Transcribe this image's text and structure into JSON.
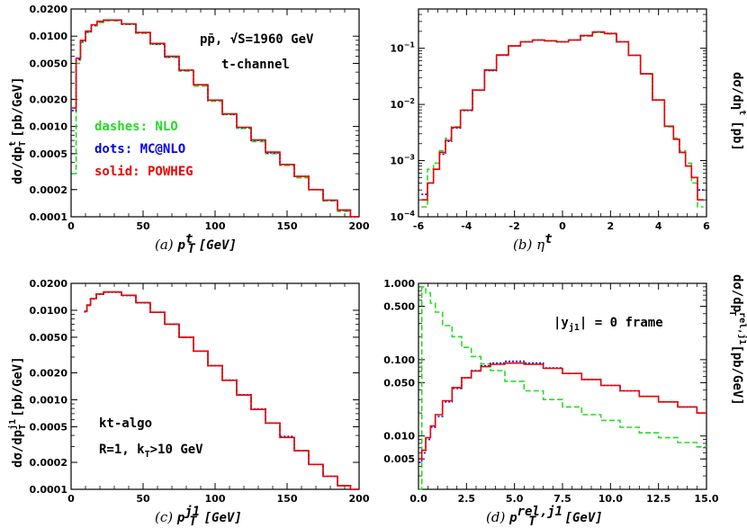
{
  "colors": {
    "NLO": "#22dd22",
    "MC@NLO": "#0000ee",
    "POWHEG": "#ee0000"
  },
  "legend": {
    "nlo": "dashes: NLO",
    "mcnlo": "dots: MC@NLO",
    "powheg": "solid: POWHEG"
  },
  "panels": {
    "a": {
      "caption_letter": "(a)",
      "caption_var": "p",
      "caption_sup": "t",
      "caption_sub": "T",
      "caption_unit": "[GeV]",
      "ylabel_main": "dσ/dp",
      "ylabel_sup": "t",
      "ylabel_sub": "T",
      "ylabel_unit": "[pb/GeV]",
      "note1": "pp̄, √S=1960 GeV",
      "note2": "t-channel"
    },
    "b": {
      "caption_letter": "(b)",
      "caption_var": "η",
      "caption_sup": "t",
      "ylabel_main": "dσ/dη",
      "ylabel_sup": "t",
      "ylabel_unit": "[pb]"
    },
    "c": {
      "caption_letter": "(c)",
      "caption_var": "p",
      "caption_sup": "j1",
      "caption_sub": "T",
      "caption_unit": "[GeV]",
      "ylabel_main": "dσ/dp",
      "ylabel_sup": "j1",
      "ylabel_sub": "T",
      "ylabel_unit": "[pb/GeV]",
      "note1": "kt-algo",
      "note2": "R=1, k",
      "note2_sub": "T",
      "note2_tail": ">10 GeV"
    },
    "d": {
      "caption_letter": "(d)",
      "caption_var": "p",
      "caption_sup": "rel,j1",
      "caption_sub": "T",
      "caption_unit": "[GeV]",
      "ylabel_main": "dσ/dp",
      "ylabel_sup": "rel,j1",
      "ylabel_sub": "T",
      "ylabel_unit": "[pb/GeV]",
      "note1": "|y",
      "note1_sub": "j1",
      "note1_tail": "| = 0 frame"
    }
  },
  "chart_data": [
    {
      "type": "line",
      "panel": "a",
      "yscale": "log",
      "xlim": [
        0,
        200
      ],
      "ylim": [
        0.0001,
        0.02
      ],
      "xticks": [
        0,
        50,
        100,
        150,
        200
      ],
      "yticks": [
        0.0001,
        0.0002,
        0.0005,
        0.001,
        0.002,
        0.005,
        0.01,
        0.02
      ],
      "ytick_labels": [
        "0.0001",
        "0.0002",
        "0.0005",
        "0.0010",
        "0.0020",
        "0.0050",
        "0.0100",
        "0.0200"
      ],
      "series": [
        {
          "name": "NLO",
          "x": [
            2,
            5,
            8,
            12,
            16,
            20,
            25,
            30,
            40,
            50,
            60,
            70,
            80,
            90,
            100,
            110,
            120,
            130,
            140,
            150,
            160,
            170,
            180,
            190,
            198
          ],
          "y": [
            0.0003,
            0.005,
            0.0085,
            0.011,
            0.013,
            0.0142,
            0.0148,
            0.0148,
            0.0135,
            0.0108,
            0.0081,
            0.0058,
            0.0041,
            0.0028,
            0.0019,
            0.00135,
            0.00095,
            0.00068,
            0.0005,
            0.00037,
            0.00027,
            0.0002,
            0.00015,
            0.000115,
            0.0001
          ]
        },
        {
          "name": "MC@NLO",
          "x": [
            2,
            5,
            8,
            12,
            16,
            20,
            25,
            30,
            40,
            50,
            60,
            70,
            80,
            90,
            100,
            110,
            120,
            130,
            140,
            150,
            160,
            170,
            180,
            190,
            198
          ],
          "y": [
            0.0015,
            0.0055,
            0.0088,
            0.0112,
            0.0132,
            0.0145,
            0.015,
            0.015,
            0.0136,
            0.0109,
            0.0082,
            0.0059,
            0.0042,
            0.0029,
            0.00195,
            0.00137,
            0.00097,
            0.0007,
            0.00051,
            0.00038,
            0.00028,
            0.0002,
            0.000152,
            0.000118,
            0.0001
          ]
        },
        {
          "name": "POWHEG",
          "x": [
            2,
            5,
            8,
            12,
            16,
            20,
            25,
            30,
            40,
            50,
            60,
            70,
            80,
            90,
            100,
            110,
            120,
            130,
            140,
            150,
            160,
            170,
            180,
            190,
            198
          ],
          "y": [
            0.0016,
            0.0057,
            0.009,
            0.0114,
            0.0134,
            0.0146,
            0.0151,
            0.0151,
            0.0137,
            0.011,
            0.0083,
            0.006,
            0.0042,
            0.0029,
            0.00196,
            0.00138,
            0.00098,
            0.00071,
            0.00052,
            0.00038,
            0.00028,
            0.0002,
            0.000153,
            0.000119,
            0.0001
          ]
        }
      ]
    },
    {
      "type": "line",
      "panel": "b",
      "yscale": "log",
      "xlim": [
        -6,
        6
      ],
      "ylim": [
        0.0001,
        0.5
      ],
      "xticks": [
        -6,
        -4,
        -2,
        0,
        2,
        4,
        6
      ],
      "yticks": [
        0.0001,
        0.001,
        0.01,
        0.1
      ],
      "ytick_labels": [
        "10^-4",
        "10^-3",
        "10^-2",
        "10^-1"
      ],
      "series": [
        {
          "name": "NLO",
          "x": [
            -5.75,
            -5.5,
            -5.25,
            -5,
            -4.75,
            -4.5,
            -4,
            -3.5,
            -3,
            -2.5,
            -2,
            -1.5,
            -1,
            -0.5,
            0,
            0.5,
            1,
            1.5,
            2,
            2.5,
            3,
            3.5,
            4,
            4.5,
            4.75,
            5,
            5.25,
            5.5,
            5.75
          ],
          "y": [
            0.00015,
            0.0007,
            0.0009,
            0.0015,
            0.0025,
            0.004,
            0.008,
            0.018,
            0.04,
            0.075,
            0.11,
            0.13,
            0.14,
            0.135,
            0.13,
            0.14,
            0.165,
            0.19,
            0.18,
            0.13,
            0.075,
            0.035,
            0.012,
            0.004,
            0.0025,
            0.0015,
            0.0009,
            0.0004,
            0.00015
          ]
        },
        {
          "name": "MC@NLO",
          "x": [
            -5.75,
            -5.5,
            -5.25,
            -5,
            -4.75,
            -4.5,
            -4,
            -3.5,
            -3,
            -2.5,
            -2,
            -1.5,
            -1,
            -0.5,
            0,
            0.5,
            1,
            1.5,
            2,
            2.5,
            3,
            3.5,
            4,
            4.5,
            4.75,
            5,
            5.25,
            5.5,
            5.75
          ],
          "y": [
            0.00025,
            0.0004,
            0.0007,
            0.0013,
            0.0022,
            0.0038,
            0.0078,
            0.018,
            0.04,
            0.075,
            0.11,
            0.13,
            0.14,
            0.135,
            0.13,
            0.14,
            0.168,
            0.195,
            0.185,
            0.13,
            0.075,
            0.035,
            0.012,
            0.0041,
            0.0024,
            0.0014,
            0.0008,
            0.0005,
            0.0003
          ]
        },
        {
          "name": "POWHEG",
          "x": [
            -5.75,
            -5.5,
            -5.25,
            -5,
            -4.75,
            -4.5,
            -4,
            -3.5,
            -3,
            -2.5,
            -2,
            -1.5,
            -1,
            -0.5,
            0,
            0.5,
            1,
            1.5,
            2,
            2.5,
            3,
            3.5,
            4,
            4.5,
            4.75,
            5,
            5.25,
            5.5,
            5.75
          ],
          "y": [
            0.0002,
            0.0004,
            0.0007,
            0.0014,
            0.0023,
            0.0039,
            0.0079,
            0.018,
            0.041,
            0.076,
            0.11,
            0.13,
            0.14,
            0.136,
            0.13,
            0.14,
            0.168,
            0.195,
            0.183,
            0.13,
            0.075,
            0.035,
            0.012,
            0.0041,
            0.0024,
            0.0014,
            0.0008,
            0.0005,
            0.0002
          ]
        }
      ]
    },
    {
      "type": "line",
      "panel": "c",
      "yscale": "log",
      "xlim": [
        0,
        200
      ],
      "ylim": [
        0.0001,
        0.02
      ],
      "xticks": [
        0,
        50,
        100,
        150,
        200
      ],
      "yticks": [
        0.0001,
        0.0002,
        0.0005,
        0.001,
        0.002,
        0.005,
        0.01,
        0.02
      ],
      "ytick_labels": [
        "0.0001",
        "0.0002",
        "0.0005",
        "0.0010",
        "0.0020",
        "0.0050",
        "0.0100",
        "0.0200"
      ],
      "series": [
        {
          "name": "NLO",
          "x": [
            10,
            12,
            15,
            20,
            25,
            30,
            40,
            50,
            60,
            70,
            80,
            90,
            100,
            110,
            120,
            130,
            140,
            150,
            160,
            170,
            180,
            190,
            198
          ],
          "y": [
            0.0098,
            0.0115,
            0.0135,
            0.0152,
            0.016,
            0.016,
            0.0147,
            0.0122,
            0.0095,
            0.007,
            0.005,
            0.0035,
            0.0024,
            0.00165,
            0.00113,
            0.00078,
            0.00055,
            0.00038,
            0.00027,
            0.00019,
            0.00014,
            0.00011,
            0.0001
          ]
        },
        {
          "name": "MC@NLO",
          "x": [
            10,
            12,
            15,
            20,
            25,
            30,
            40,
            50,
            60,
            70,
            80,
            90,
            100,
            110,
            120,
            130,
            140,
            150,
            160,
            170,
            180,
            190,
            198
          ],
          "y": [
            0.0096,
            0.0113,
            0.0134,
            0.0151,
            0.0159,
            0.0159,
            0.0146,
            0.0121,
            0.0095,
            0.007,
            0.005,
            0.0035,
            0.0024,
            0.00166,
            0.00114,
            0.00079,
            0.00055,
            0.00039,
            0.00027,
            0.00019,
            0.00014,
            0.00011,
            0.0001
          ]
        },
        {
          "name": "POWHEG",
          "x": [
            10,
            12,
            15,
            20,
            25,
            30,
            40,
            50,
            60,
            70,
            80,
            90,
            100,
            110,
            120,
            130,
            140,
            150,
            160,
            170,
            180,
            190,
            198
          ],
          "y": [
            0.0097,
            0.0114,
            0.0135,
            0.0152,
            0.016,
            0.016,
            0.0147,
            0.0122,
            0.0095,
            0.007,
            0.005,
            0.0035,
            0.0024,
            0.00165,
            0.00113,
            0.00078,
            0.00055,
            0.00038,
            0.00027,
            0.00019,
            0.00014,
            0.00011,
            0.0001
          ]
        }
      ]
    },
    {
      "type": "line",
      "panel": "d",
      "yscale": "log",
      "xlim": [
        0,
        15
      ],
      "ylim": [
        0.002,
        1.0
      ],
      "xticks": [
        0,
        2.5,
        5,
        7.5,
        10,
        12.5,
        15
      ],
      "xtick_labels": [
        "0.0",
        "2.5",
        "5.0",
        "7.5",
        "10.0",
        "12.5",
        "15.0"
      ],
      "yticks": [
        0.005,
        0.01,
        0.05,
        0.1,
        0.5,
        1.0
      ],
      "ytick_labels": [
        "0.005",
        "0.010",
        "0.050",
        "0.100",
        "0.500",
        "1.000"
      ],
      "series": [
        {
          "name": "NLO",
          "x": [
            0.1,
            0.25,
            0.5,
            0.75,
            1,
            1.5,
            2,
            2.5,
            3,
            3.5,
            4,
            5,
            6,
            7,
            8,
            9,
            10,
            11,
            12,
            13,
            14,
            15
          ],
          "y": [
            0.002,
            0.9,
            0.75,
            0.55,
            0.42,
            0.28,
            0.2,
            0.145,
            0.11,
            0.088,
            0.072,
            0.052,
            0.039,
            0.03,
            0.024,
            0.019,
            0.016,
            0.013,
            0.011,
            0.0095,
            0.0082,
            0.0072
          ]
        },
        {
          "name": "MC@NLO",
          "x": [
            0.1,
            0.25,
            0.5,
            0.75,
            1,
            1.5,
            2,
            2.5,
            3,
            3.5,
            4,
            5,
            6,
            7,
            8,
            9,
            10,
            11,
            12,
            13,
            14,
            15
          ],
          "y": [
            0.0045,
            0.006,
            0.009,
            0.013,
            0.018,
            0.028,
            0.042,
            0.058,
            0.072,
            0.083,
            0.09,
            0.095,
            0.09,
            0.078,
            0.066,
            0.055,
            0.046,
            0.039,
            0.033,
            0.028,
            0.024,
            0.02
          ]
        },
        {
          "name": "POWHEG",
          "x": [
            0.1,
            0.25,
            0.5,
            0.75,
            1,
            1.5,
            2,
            2.5,
            3,
            3.5,
            4,
            5,
            6,
            7,
            8,
            9,
            10,
            11,
            12,
            13,
            14,
            15
          ],
          "y": [
            0.005,
            0.0065,
            0.0095,
            0.0135,
            0.019,
            0.029,
            0.043,
            0.058,
            0.071,
            0.081,
            0.087,
            0.09,
            0.087,
            0.077,
            0.066,
            0.055,
            0.046,
            0.039,
            0.033,
            0.028,
            0.024,
            0.02
          ]
        }
      ]
    }
  ]
}
